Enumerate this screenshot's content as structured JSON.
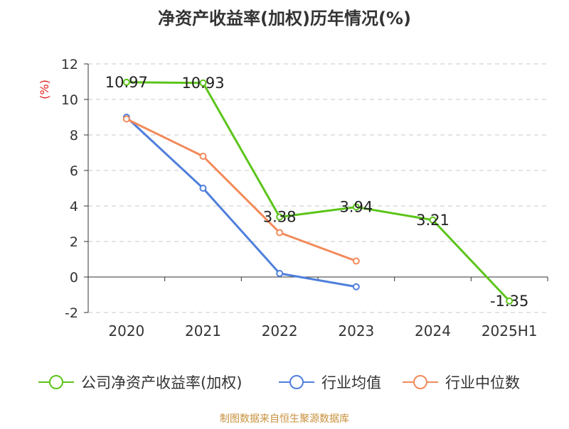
{
  "chart_data": {
    "type": "line",
    "title": "净资产收益率(加权)历年情况(%)",
    "ylabel": "(%)",
    "xlabel": "",
    "categories": [
      "2020",
      "2021",
      "2022",
      "2023",
      "2024",
      "2025H1"
    ],
    "ylim": [
      -2,
      12
    ],
    "yticks": [
      12,
      10,
      8,
      6,
      4,
      2,
      0,
      -2
    ],
    "grid": true,
    "legend_position": "bottom",
    "series": [
      {
        "name": "公司净资产收益率(加权)",
        "color": "#5cc41a",
        "values": [
          10.97,
          10.93,
          3.38,
          3.94,
          3.21,
          -1.35
        ],
        "labels": [
          "10.97",
          "10.93",
          "3.38",
          "3.94",
          "3.21",
          "-1.35"
        ]
      },
      {
        "name": "行业均值",
        "color": "#4f7fdc",
        "values": [
          9.0,
          5.0,
          0.2,
          -0.55,
          null,
          null
        ]
      },
      {
        "name": "行业中位数",
        "color": "#f28a5a",
        "values": [
          8.9,
          6.8,
          2.5,
          0.9,
          null,
          null
        ]
      }
    ]
  },
  "source": "制图数据来自恒生聚源数据库"
}
